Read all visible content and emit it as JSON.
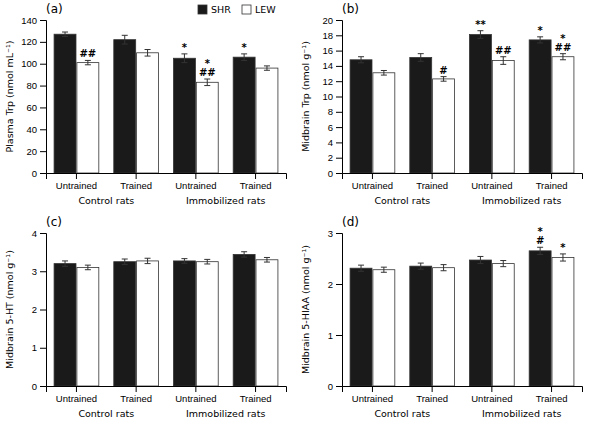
{
  "chart_data": [
    {
      "type": "bar",
      "title": "(a)",
      "y_label": "Plasma Trp (nmol mL⁻¹)",
      "categories": [
        "Untrained",
        "Trained",
        "Untrained",
        "Trained"
      ],
      "x_group_labels": [
        "Control rats",
        "Immobilized rats"
      ],
      "series": [
        {
          "name": "SHR",
          "color": "#1a1a1a",
          "values": [
            127,
            122,
            105,
            106
          ],
          "errors": [
            2,
            4,
            4,
            3
          ],
          "annotations": [
            null,
            null,
            "*",
            "*"
          ]
        },
        {
          "name": "LEW",
          "color": "#ffffff",
          "values": [
            101,
            110,
            83,
            96
          ],
          "errors": [
            2,
            3,
            3,
            2
          ],
          "annotations": [
            "##",
            null,
            "*\n##",
            null
          ]
        }
      ],
      "ylim": [
        0,
        140
      ],
      "yticks": [
        0,
        20,
        40,
        60,
        80,
        100,
        120,
        140
      ],
      "legend": "upper right"
    },
    {
      "type": "bar",
      "title": "(b)",
      "y_label": "Midbrain Trp (nmol g⁻¹)",
      "categories": [
        "Untrained",
        "Trained",
        "Untrained",
        "Trained"
      ],
      "x_group_labels": [
        "Control rats",
        "Immobilized rats"
      ],
      "series": [
        {
          "name": "SHR",
          "color": "#1a1a1a",
          "values": [
            14.8,
            15.1,
            18.1,
            17.4
          ],
          "errors": [
            0.4,
            0.5,
            0.5,
            0.4
          ],
          "annotations": [
            null,
            null,
            "**",
            "*"
          ]
        },
        {
          "name": "LEW",
          "color": "#ffffff",
          "values": [
            13.1,
            12.3,
            14.7,
            15.2
          ],
          "errors": [
            0.3,
            0.3,
            0.5,
            0.4
          ],
          "annotations": [
            null,
            "#",
            "##",
            "*\n##"
          ]
        }
      ],
      "ylim": [
        0,
        20
      ],
      "yticks": [
        0,
        2,
        4,
        6,
        8,
        10,
        12,
        14,
        16,
        18,
        20
      ]
    },
    {
      "type": "bar",
      "title": "(c)",
      "y_label": "Midbrain 5-HT (nmol g⁻¹)",
      "categories": [
        "Untrained",
        "Trained",
        "Untrained",
        "Trained"
      ],
      "x_group_labels": [
        "Control rats",
        "Immobilized rats"
      ],
      "series": [
        {
          "name": "SHR",
          "color": "#1a1a1a",
          "values": [
            3.2,
            3.25,
            3.27,
            3.44
          ],
          "errors": [
            0.07,
            0.07,
            0.06,
            0.07
          ]
        },
        {
          "name": "LEW",
          "color": "#ffffff",
          "values": [
            3.1,
            3.27,
            3.25,
            3.3
          ],
          "errors": [
            0.06,
            0.07,
            0.06,
            0.06
          ]
        }
      ],
      "ylim": [
        0,
        4
      ],
      "yticks": [
        0,
        1,
        2,
        3,
        4
      ]
    },
    {
      "type": "bar",
      "title": "(d)",
      "y_label": "Midbrain 5-HIAA (nmol g⁻¹)",
      "categories": [
        "Untrained",
        "Trained",
        "Untrained",
        "Trained"
      ],
      "x_group_labels": [
        "Control rats",
        "Immobilized rats"
      ],
      "series": [
        {
          "name": "SHR",
          "color": "#1a1a1a",
          "values": [
            2.31,
            2.35,
            2.47,
            2.65
          ],
          "errors": [
            0.06,
            0.06,
            0.07,
            0.07
          ],
          "annotations": [
            null,
            null,
            null,
            "*\n#"
          ]
        },
        {
          "name": "LEW",
          "color": "#ffffff",
          "values": [
            2.28,
            2.32,
            2.4,
            2.52
          ],
          "errors": [
            0.05,
            0.06,
            0.06,
            0.07
          ],
          "annotations": [
            null,
            null,
            null,
            "*"
          ]
        }
      ],
      "ylim": [
        0,
        3
      ],
      "yticks": [
        0,
        1,
        2,
        3
      ]
    }
  ]
}
